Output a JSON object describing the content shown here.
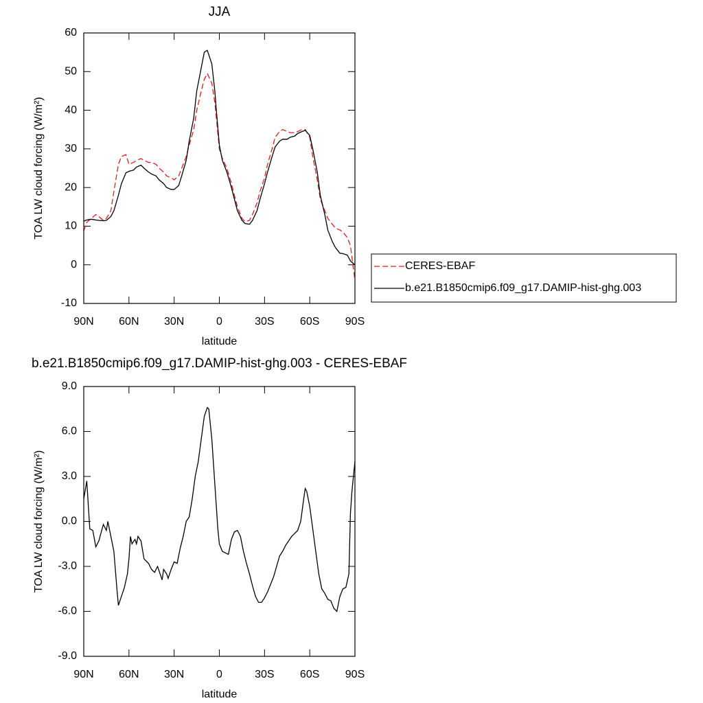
{
  "chart_data": [
    {
      "type": "line",
      "title": "JJA",
      "xlabel": "latitude",
      "ylabel": "TOA LW cloud forcing (W/m²)",
      "x": [
        90,
        88,
        85,
        82,
        80,
        77,
        75,
        72,
        70,
        67,
        65,
        62,
        60,
        57,
        55,
        52,
        50,
        47,
        45,
        42,
        40,
        37,
        35,
        32,
        30,
        27,
        25,
        22,
        20,
        17,
        15,
        12,
        10,
        8,
        5,
        3,
        2,
        0,
        -2,
        -5,
        -8,
        -10,
        -12,
        -15,
        -17,
        -20,
        -22,
        -25,
        -27,
        -30,
        -32,
        -35,
        -37,
        -40,
        -42,
        -45,
        -47,
        -50,
        -52,
        -55,
        -57,
        -60,
        -62,
        -65,
        -67,
        -70,
        -72,
        -75,
        -77,
        -80,
        -82,
        -85,
        -87,
        -90
      ],
      "xlim": [
        90,
        -90
      ],
      "xticks": [
        {
          "value": 90,
          "label": "90N"
        },
        {
          "value": 60,
          "label": "60N"
        },
        {
          "value": 30,
          "label": "30N"
        },
        0,
        {
          "value": -30,
          "label": "30S"
        },
        {
          "value": -60,
          "label": "60S"
        },
        {
          "value": -90,
          "label": "90S"
        }
      ],
      "ylim": [
        -10,
        60
      ],
      "yticks": [
        -10,
        0,
        10,
        20,
        30,
        40,
        50,
        60
      ],
      "legend": "right",
      "series": [
        {
          "name": "CERES-EBAF",
          "color": "#e41a1c",
          "line_style": "dashed",
          "values": [
            8.8,
            11,
            12,
            13,
            12.5,
            11.5,
            12,
            14,
            19,
            26,
            28,
            28.5,
            26,
            26.5,
            27,
            27.5,
            27,
            26.5,
            26.5,
            26,
            25,
            24,
            23,
            22.5,
            22,
            23,
            25,
            28,
            31,
            35,
            40,
            45,
            48,
            49.5,
            47,
            42,
            38,
            30,
            27.5,
            25,
            21,
            18,
            15,
            12,
            11.2,
            11.5,
            13,
            16,
            19,
            22.5,
            26,
            30,
            33,
            34.5,
            35,
            34.5,
            34.2,
            34.2,
            34.5,
            35,
            35,
            33,
            28,
            22,
            17,
            14,
            12,
            10.5,
            9.5,
            9,
            8.5,
            7,
            5,
            -4
          ]
        },
        {
          "name": "b.e21.B1850cmip6.f09_g17.DAMIP-hist-ghg.003",
          "color": "#000000",
          "line_style": "solid",
          "values": [
            11.3,
            11.6,
            11.8,
            11.6,
            11.5,
            11.4,
            11.5,
            12.5,
            14,
            18,
            21,
            23.8,
            24.2,
            24.5,
            25.3,
            25.8,
            25,
            24,
            23.5,
            23,
            22,
            21,
            20,
            19.5,
            19.5,
            20.5,
            23,
            27,
            32,
            38,
            45,
            51,
            55,
            55.5,
            52,
            45,
            40,
            31,
            27,
            24,
            20,
            17,
            14,
            11.5,
            10.7,
            10.5,
            11.5,
            14,
            17,
            21,
            24,
            28,
            30.5,
            32,
            32.5,
            32.5,
            33,
            33.3,
            34,
            34.5,
            34.8,
            33.5,
            30,
            24,
            18,
            13,
            9,
            6,
            4.5,
            3,
            2.9,
            2.5,
            1,
            0
          ]
        }
      ]
    },
    {
      "type": "line",
      "title": "b.e21.B1850cmip6.f09_g17.DAMIP-hist-ghg.003 - CERES-EBAF",
      "xlabel": "latitude",
      "ylabel": "TOA LW cloud forcing (W/m²)",
      "x": [
        90,
        88,
        86,
        84,
        82,
        80,
        77,
        75,
        74,
        72,
        70,
        68,
        67,
        65,
        63,
        61,
        60,
        59,
        58,
        56,
        55,
        54,
        52,
        50,
        47,
        45,
        43,
        41,
        39,
        38,
        37,
        35,
        34,
        32,
        30,
        28,
        26,
        24,
        22,
        20,
        18,
        16,
        14,
        12,
        10,
        8,
        7,
        5,
        3,
        1,
        0,
        -2,
        -4,
        -6,
        -8,
        -10,
        -12,
        -14,
        -16,
        -18,
        -20,
        -22,
        -24,
        -26,
        -28,
        -30,
        -32,
        -34,
        -36,
        -38,
        -40,
        -42,
        -44,
        -46,
        -48,
        -50,
        -52,
        -54,
        -56,
        -57,
        -58,
        -60,
        -62,
        -64,
        -66,
        -68,
        -70,
        -72,
        -74,
        -76,
        -78,
        -80,
        -82,
        -84,
        -86,
        -87,
        -88,
        -90
      ],
      "xlim": [
        90,
        -90
      ],
      "xticks": [
        {
          "value": 90,
          "label": "90N"
        },
        {
          "value": 60,
          "label": "60N"
        },
        {
          "value": 30,
          "label": "30N"
        },
        0,
        {
          "value": -30,
          "label": "30S"
        },
        {
          "value": -60,
          "label": "60S"
        },
        {
          "value": -90,
          "label": "90S"
        }
      ],
      "ylim": [
        -9,
        9
      ],
      "yticks": [
        {
          "value": -9,
          "label": "-9.0"
        },
        {
          "value": -6,
          "label": "-6.0"
        },
        {
          "value": -3,
          "label": "-3.0"
        },
        {
          "value": 0,
          "label": "0.0"
        },
        {
          "value": 3,
          "label": "3.0"
        },
        {
          "value": 6,
          "label": "6.0"
        },
        {
          "value": 9,
          "label": "9.0"
        }
      ],
      "series": [
        {
          "color": "#000000",
          "line_style": "solid",
          "values": [
            1.5,
            2.7,
            -0.5,
            -0.6,
            -1.7,
            -1.3,
            -0.2,
            -0.6,
            0,
            -1,
            -2,
            -4.5,
            -5.6,
            -5,
            -4.4,
            -3.5,
            -2.5,
            -1,
            -1.5,
            -1.2,
            -1.5,
            -1,
            -1.3,
            -2.5,
            -2.8,
            -3.2,
            -3.4,
            -3,
            -3.6,
            -3.9,
            -3.2,
            -3.5,
            -3.8,
            -3.2,
            -2.7,
            -2.8,
            -1.8,
            -1,
            0,
            0.3,
            1.5,
            3,
            4,
            5.5,
            7,
            7.6,
            7.5,
            5.5,
            2.5,
            -0.5,
            -1.5,
            -2,
            -2.1,
            -2.2,
            -1.2,
            -0.7,
            -0.6,
            -1,
            -2,
            -2.8,
            -3.5,
            -4.3,
            -5,
            -5.4,
            -5.4,
            -5.1,
            -4.7,
            -4.2,
            -3.7,
            -3,
            -2.3,
            -2,
            -1.6,
            -1.3,
            -1,
            -0.8,
            -0.6,
            0,
            1.5,
            2.2,
            2,
            1,
            -0.5,
            -2,
            -3.5,
            -4.5,
            -4.8,
            -5.2,
            -5.3,
            -5.8,
            -6,
            -5,
            -4.5,
            -4.4,
            -3.5,
            0.5,
            2,
            4
          ]
        }
      ]
    }
  ]
}
